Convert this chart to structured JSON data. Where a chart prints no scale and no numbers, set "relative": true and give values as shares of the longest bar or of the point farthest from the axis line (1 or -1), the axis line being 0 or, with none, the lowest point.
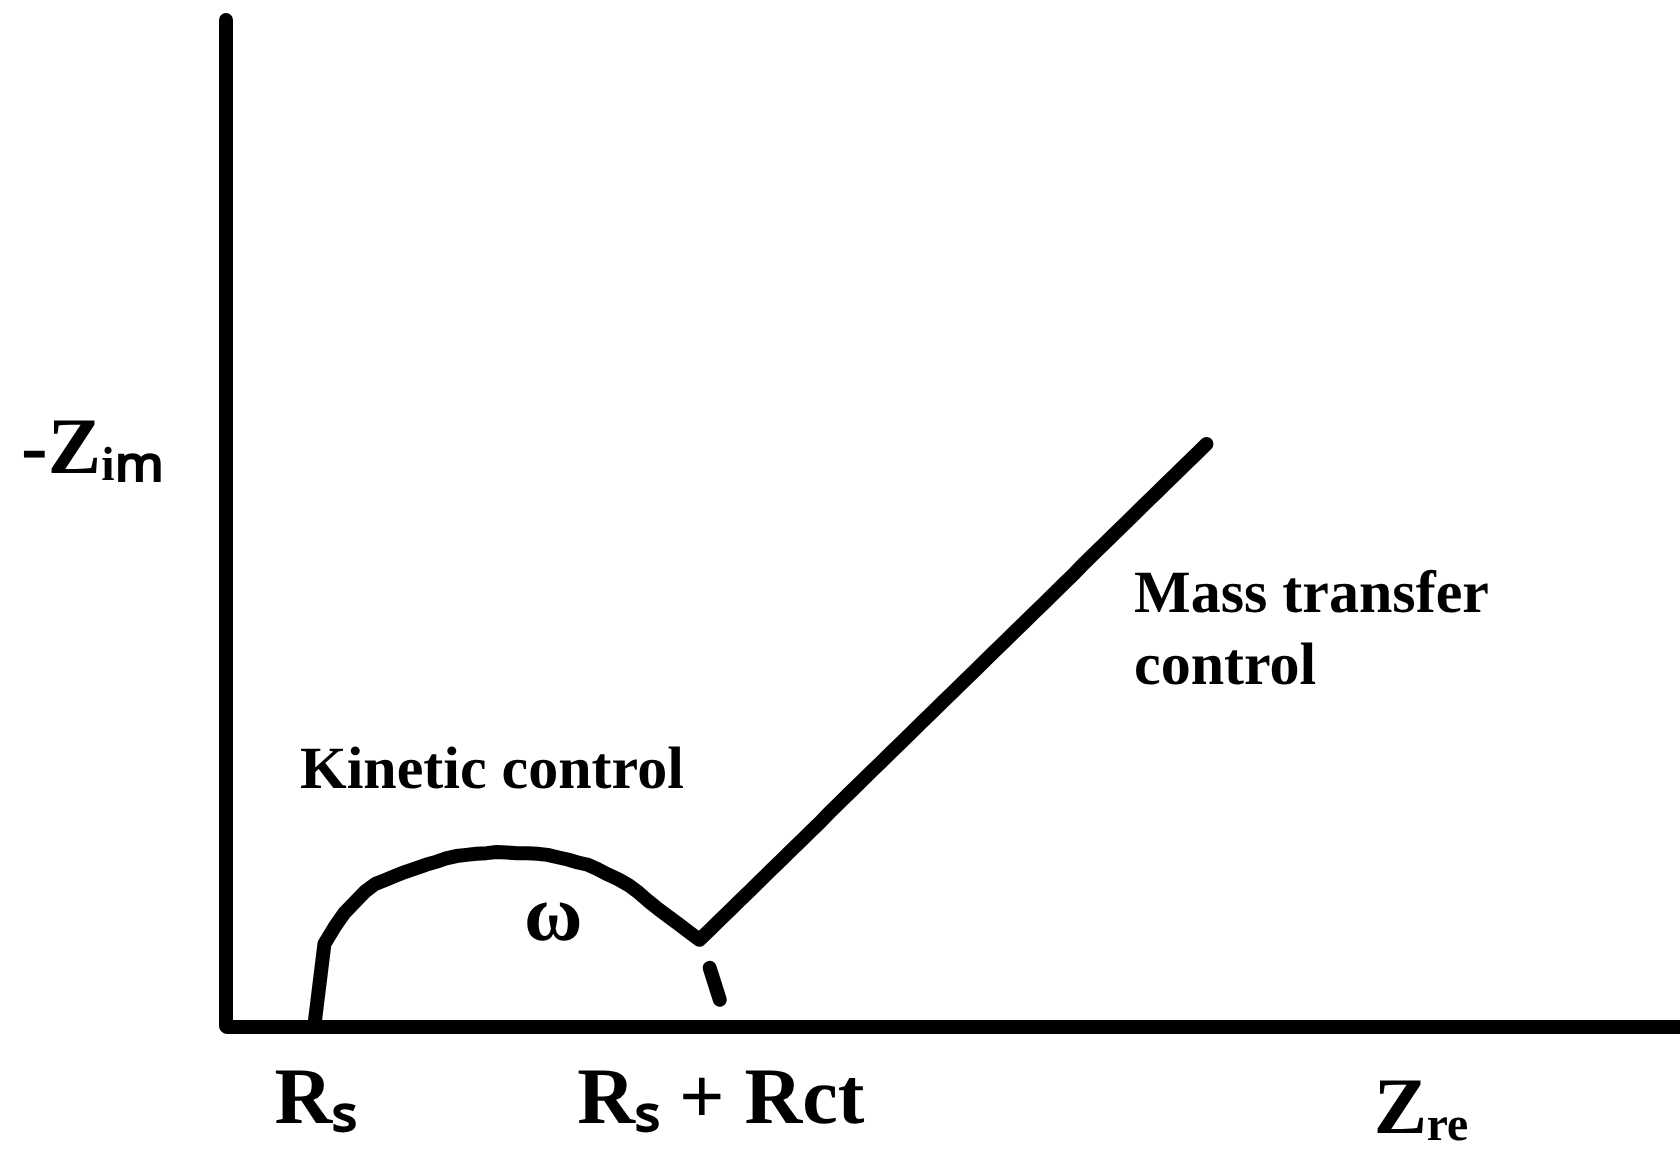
{
  "chart_data": {
    "type": "line",
    "relative": true,
    "xlabel": "Zᵣₑ",
    "ylabel": "-Zᵢₘ",
    "categories": [
      null,
      null,
      null,
      null,
      null,
      null,
      null,
      null,
      "Rₛ",
      null,
      null,
      null,
      null,
      null,
      null,
      null,
      null,
      null,
      null,
      null,
      null,
      null,
      null,
      null,
      null,
      null,
      null,
      null,
      null,
      null,
      null,
      null,
      null,
      null,
      null,
      null,
      null,
      null,
      null,
      null,
      null,
      null,
      null,
      null,
      null,
      null,
      null,
      null,
      "Rₛ + Rct",
      null,
      null,
      null,
      null,
      null,
      null,
      null,
      null,
      null,
      null,
      null,
      null,
      null,
      null,
      null,
      null,
      null,
      null,
      null,
      null,
      null,
      null,
      null,
      null,
      null,
      null,
      null,
      null,
      null,
      null,
      null,
      null,
      null,
      null,
      null,
      null,
      null,
      null,
      null,
      null,
      null,
      null,
      null,
      null,
      null,
      null,
      null,
      null,
      null,
      null,
      null,
      null,
      null,
      null,
      null,
      null,
      null,
      null,
      null,
      null,
      null,
      null,
      null,
      null,
      null,
      null,
      null,
      null,
      null,
      null,
      null,
      null,
      null,
      null,
      null,
      null,
      null,
      null,
      null,
      null,
      null,
      null,
      null,
      null,
      null,
      null,
      null,
      null,
      null,
      null,
      null,
      null,
      null,
      null
    ],
    "series": [
      {
        "color": "#000000",
        "values": [
          null,
          null,
          null,
          null,
          null,
          null,
          null,
          null,
          0,
          0.141,
          0.17,
          0.195,
          0.213,
          0.231,
          0.244,
          0.251,
          0.258,
          0.265,
          0.271,
          0.277,
          0.282,
          0.288,
          0.292,
          0.294,
          0.296,
          0.297,
          0.299,
          0.298,
          0.297,
          0.297,
          0.296,
          0.294,
          0.29,
          0.286,
          0.281,
          0.277,
          0.269,
          0.26,
          0.252,
          0.242,
          0.229,
          0.214,
          0.2,
          0.187,
          0.174,
          0.161,
          0.148,
          0.165,
          0.182,
          0.199,
          0.216,
          0.233,
          0.25,
          0.267,
          0.284,
          0.301,
          0.318,
          0.335,
          0.352,
          0.37,
          0.387,
          0.404,
          0.421,
          0.438,
          0.455,
          0.472,
          0.489,
          0.506,
          0.523,
          0.54,
          0.557,
          0.574,
          0.591,
          0.608,
          0.625,
          0.642,
          0.659,
          0.676,
          0.693,
          0.71,
          0.727,
          0.744,
          0.761,
          0.778,
          0.796,
          0.813,
          0.83,
          0.847,
          0.864,
          0.881,
          0.898,
          0.915,
          0.932,
          0.949,
          0.966,
          0.983,
          1,
          null,
          null,
          null,
          null,
          null,
          null,
          null,
          null,
          null,
          null,
          null,
          null,
          null,
          null,
          null,
          null,
          null,
          null,
          null,
          null,
          null,
          null,
          null,
          null,
          null,
          null,
          null,
          null,
          null,
          null,
          null,
          null,
          null,
          null,
          null,
          null,
          null,
          null,
          null,
          null,
          null,
          null,
          null,
          null,
          null,
          null
        ]
      },
      {
        "color": "#000000",
        "values": [
          null,
          null,
          null,
          null,
          null,
          null,
          null,
          null,
          null,
          null,
          null,
          null,
          null,
          null,
          null,
          null,
          null,
          null,
          null,
          null,
          null,
          null,
          null,
          null,
          null,
          null,
          null,
          null,
          null,
          null,
          null,
          null,
          null,
          null,
          null,
          null,
          null,
          null,
          null,
          null,
          null,
          null,
          null,
          null,
          null,
          null,
          null,
          0.1,
          0.045,
          null,
          null,
          null,
          null,
          null,
          null,
          null,
          null,
          null,
          null,
          null,
          null,
          null,
          null,
          null,
          null,
          null,
          null,
          null,
          null,
          null,
          null,
          null,
          null,
          null,
          null,
          null,
          null,
          null,
          null,
          null,
          null,
          null,
          null,
          null,
          null,
          null,
          null,
          null,
          null,
          null,
          null,
          null,
          null,
          null,
          null,
          null,
          null,
          null,
          null,
          null,
          null,
          null,
          null,
          null,
          null,
          null,
          null,
          null,
          null,
          null,
          null,
          null,
          null,
          null,
          null,
          null,
          null,
          null,
          null,
          null,
          null,
          null,
          null,
          null,
          null,
          null,
          null,
          null,
          null,
          null,
          null,
          null,
          null,
          null,
          null,
          null,
          null,
          null,
          null,
          null,
          null,
          null,
          null
        ]
      }
    ],
    "annotations": [
      "Kinetic control",
      "ω",
      "Mass transfer\ncontrol"
    ]
  }
}
